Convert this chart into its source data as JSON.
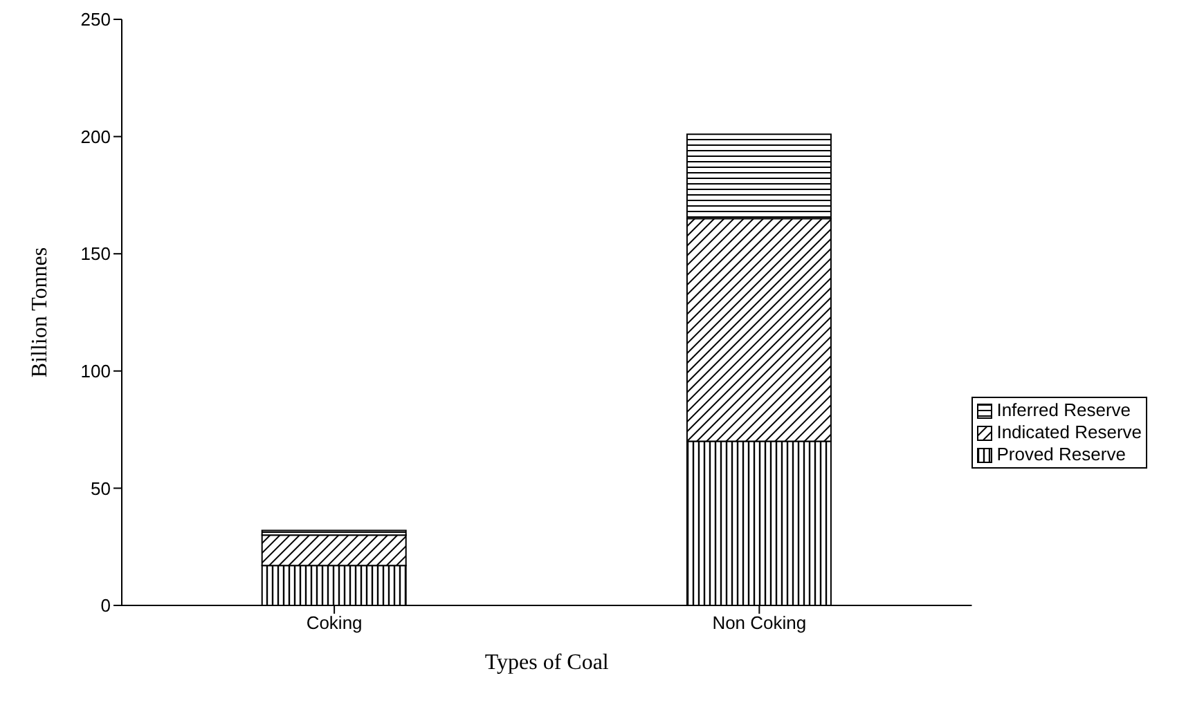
{
  "chart_data": {
    "type": "bar",
    "stacked": true,
    "xlabel": "Types of Coal",
    "ylabel": "Billion Tonnes",
    "categories": [
      "Coking",
      "Non Coking"
    ],
    "series": [
      {
        "name": "Proved Reserve",
        "color": "#000000",
        "values": [
          17,
          70
        ]
      },
      {
        "name": "Indicated Reserve",
        "color": "#000000",
        "values": [
          13,
          95
        ]
      },
      {
        "name": "Inferred Reserve",
        "color": "#000000",
        "values": [
          2,
          36
        ]
      }
    ],
    "ylim": [
      0,
      250
    ],
    "yticks": [
      0,
      50,
      100,
      150,
      200,
      250
    ],
    "grid": false,
    "legend": "right"
  }
}
